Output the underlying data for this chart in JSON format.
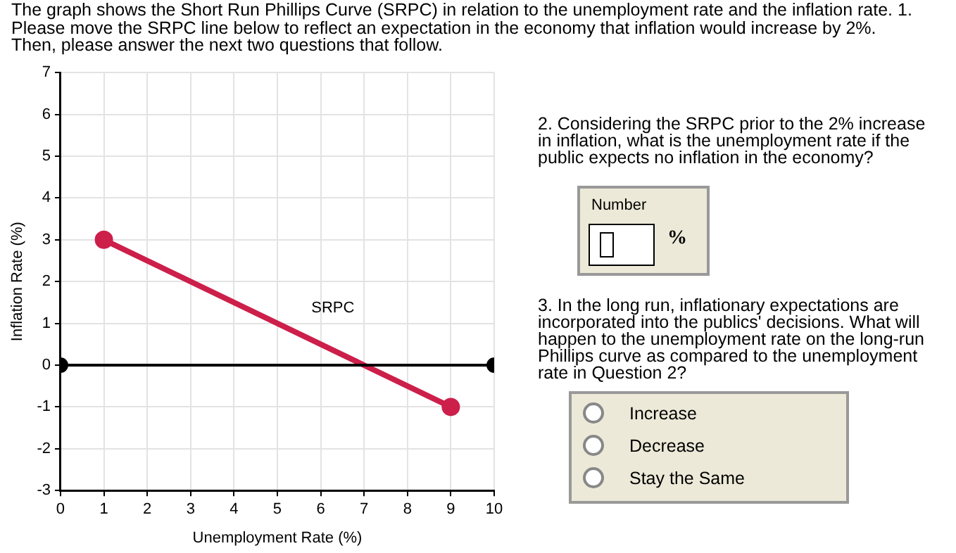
{
  "chart_data": {
    "type": "line",
    "title": "The graph shows the Short Run Phillips Curve (SRPC) in relation to the unemployment rate and the inflation rate.  1. Please move the SRPC line below to reflect an expectation in the economy that inflation would increase by 2%. Then, please answer the next two questions that follow.",
    "xlabel": "Unemployment Rate (%)",
    "ylabel": "Inflation Rate (%)",
    "series": [
      {
        "name": "SRPC",
        "color": "#cc1f4a",
        "x": [
          1,
          9
        ],
        "values": [
          3,
          -1
        ]
      },
      {
        "color": "#000000",
        "x": [
          0,
          10
        ],
        "values": [
          0,
          0
        ]
      }
    ],
    "xlim": [
      0,
      10
    ],
    "xticks": [
      0,
      1,
      2,
      3,
      4,
      5,
      6,
      7,
      8,
      9,
      10
    ],
    "ylim": [
      -3,
      7
    ],
    "yticks": [
      -3,
      -2,
      -1,
      0,
      1,
      2,
      3,
      4,
      5,
      6,
      7
    ],
    "grid": true,
    "legend": false,
    "marker": "circle",
    "line_style": "solid",
    "annotations": [
      "2. Considering the SRPC prior to the 2% increase in inflation, what is the unemployment rate if the public expects no inflation in the economy?",
      "Number",
      "%",
      "3. In the long run, inflationary expectations are incorporated into the publics' decisions.  What will happen to the unemployment rate on the long-run Phillips curve as compared to the unemployment rate in Question 2?",
      "Increase",
      "Decrease",
      "Stay the Same"
    ]
  }
}
